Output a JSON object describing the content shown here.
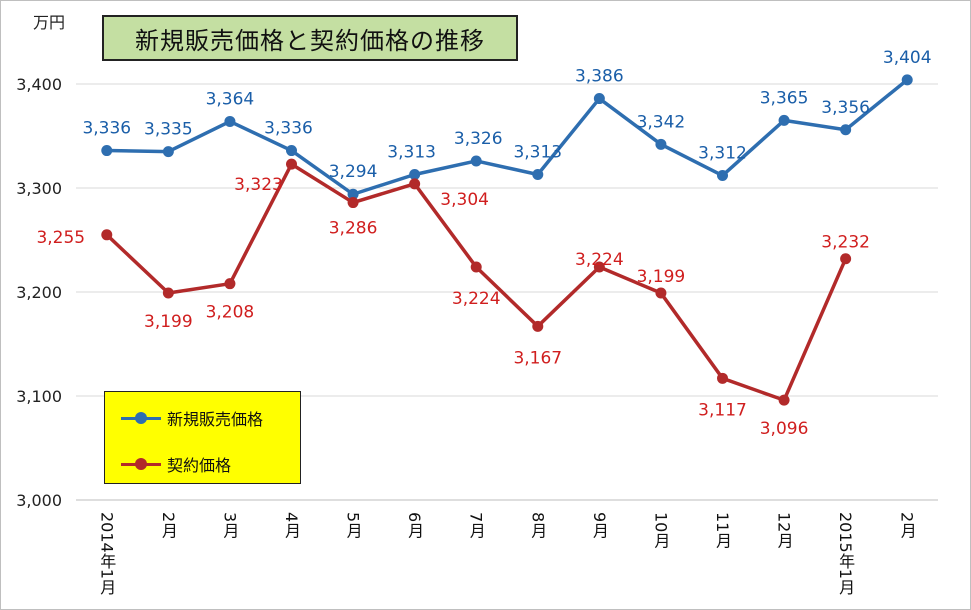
{
  "header": {
    "unit_label": "万円"
  },
  "chart_data": {
    "type": "line",
    "title": "新規販売価格と契約価格の推移",
    "xlabel": "",
    "ylabel": "万円",
    "ylim": [
      3000,
      3400
    ],
    "yticks": [
      "3,000",
      "3,100",
      "3,200",
      "3,300",
      "3,400"
    ],
    "categories": [
      "2014年1月",
      "2月",
      "3月",
      "4月",
      "5月",
      "6月",
      "7月",
      "8月",
      "9月",
      "10月",
      "11月",
      "12月",
      "2015年1月",
      "2月"
    ],
    "grid": true,
    "legend_position": "bottom-left",
    "series": [
      {
        "name": "新規販売価格",
        "color": "#2e6eb0",
        "label_color": "#1a5ea8",
        "values": [
          3336,
          3335,
          3364,
          3336,
          3294,
          3313,
          3326,
          3313,
          3386,
          3342,
          3312,
          3365,
          3356,
          3404
        ],
        "labels": [
          "3,336",
          "3,335",
          "3,364",
          "3,336",
          "3,294",
          "3,313",
          "3,326",
          "3,313",
          "3,386",
          "3,342",
          "3,312",
          "3,365",
          "3,356",
          "3,404"
        ]
      },
      {
        "name": "契約価格",
        "color": "#b22a2a",
        "label_color": "#d01e1e",
        "values": [
          3255,
          3199,
          3208,
          3323,
          3286,
          3304,
          3224,
          3167,
          3224,
          3199,
          3117,
          3096,
          3232,
          null
        ],
        "labels": [
          "3,255",
          "3,199",
          "3,208",
          "3,323",
          "3,286",
          "3,304",
          "3,224",
          "3,167",
          "3,224",
          "3,199",
          "3,117",
          "3,096",
          "3,232",
          ""
        ]
      }
    ]
  }
}
